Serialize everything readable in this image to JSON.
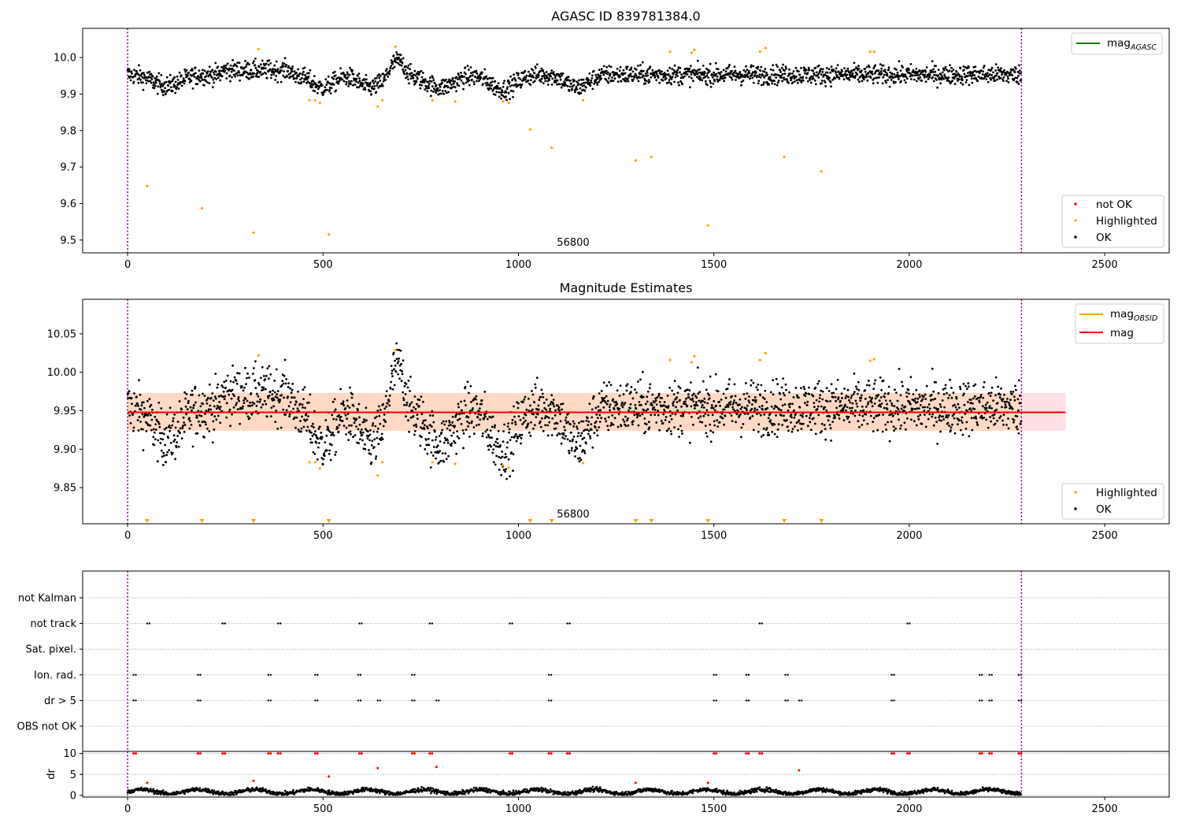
{
  "chart_data": [
    {
      "type": "scatter",
      "title": "AGASC ID 839781384.0",
      "xlabel": "",
      "ylabel": "",
      "xlim": [
        -115,
        2665
      ],
      "ylim": [
        9.465,
        10.08
      ],
      "xticks": [
        0,
        500,
        1000,
        1500,
        2000,
        2500
      ],
      "yticks": [
        9.5,
        9.6,
        9.7,
        9.8,
        9.9,
        10.0
      ],
      "ytick_labels": [
        "9.5",
        "9.6",
        "9.7",
        "9.8",
        "9.9",
        "10.0"
      ],
      "vlines": [
        0,
        2287
      ],
      "annotation": {
        "text": "56800",
        "x": 1140
      },
      "legend_line": {
        "label_main": "mag",
        "label_sub": "AGASC",
        "color": "#008000"
      },
      "legend_markers": [
        {
          "label": "not OK",
          "color": "#ff0000"
        },
        {
          "label": "Highlighted",
          "color": "#ffa500"
        },
        {
          "label": "OK",
          "color": "#000000"
        }
      ],
      "series": [
        {
          "name": "OK",
          "color": "#000000",
          "n_points": 2287,
          "trend": "noisy scatter around 9.95 with dips near 9.91"
        },
        {
          "name": "Highlighted",
          "color": "#ffa500",
          "x": [
            50,
            190,
            322,
            335,
            465,
            480,
            492,
            515,
            640,
            652,
            685,
            780,
            838,
            960,
            975,
            1030,
            1085,
            1165,
            1300,
            1340,
            1388,
            1443,
            1450,
            1485,
            1618,
            1632,
            1680,
            1775,
            1900,
            1910
          ],
          "y": [
            9.648,
            9.587,
            9.52,
            10.023,
            9.883,
            9.883,
            9.876,
            9.515,
            9.866,
            9.883,
            10.03,
            9.883,
            9.88,
            9.88,
            9.876,
            9.803,
            9.753,
            9.883,
            9.718,
            9.728,
            10.016,
            10.013,
            10.021,
            9.54,
            10.016,
            10.026,
            9.728,
            9.688,
            10.016,
            10.016
          ]
        }
      ]
    },
    {
      "type": "scatter",
      "title": "Magnitude Estimates",
      "xlim": [
        -115,
        2665
      ],
      "ylim": [
        9.803,
        10.095
      ],
      "xticks": [
        0,
        500,
        1000,
        1500,
        2000,
        2500
      ],
      "yticks": [
        9.85,
        9.9,
        9.95,
        10.0,
        10.05
      ],
      "ytick_labels": [
        "9.85",
        "9.90",
        "9.95",
        "10.00",
        "10.05"
      ],
      "vlines": [
        0,
        2287
      ],
      "annotation": {
        "text": "56800",
        "x": 1140
      },
      "mag_line": {
        "value": 9.948,
        "x_range": [
          0,
          2400
        ],
        "color": "#ff0000"
      },
      "band_outer": {
        "y": [
          9.924,
          9.973
        ],
        "x_range": [
          0,
          2400
        ],
        "color": "#ffe0e6"
      },
      "band_inner": {
        "y": [
          9.924,
          9.973
        ],
        "x_range": [
          0,
          2287
        ],
        "color": "#ffd9c6"
      },
      "legend_lines": [
        {
          "label_main": "mag",
          "label_sub": "OBSID",
          "color": "#ffa500"
        },
        {
          "label_main": "mag",
          "label_sub": "",
          "color": "#ff0000"
        }
      ],
      "legend_markers": [
        {
          "label": "Highlighted",
          "color": "#ffa500"
        },
        {
          "label": "OK",
          "color": "#000000"
        }
      ],
      "offscale_markers_x": [
        50,
        190,
        322,
        515,
        1030,
        1085,
        1300,
        1340,
        1485,
        1680,
        1775
      ],
      "series": [
        {
          "name": "OK",
          "color": "#000000",
          "n_points": 2287,
          "trend": "noisy scatter around 9.95 with dips to 9.89"
        },
        {
          "name": "Highlighted",
          "color": "#ffa500",
          "x": [
            335,
            465,
            480,
            492,
            640,
            652,
            685,
            780,
            838,
            960,
            975,
            1165,
            1388,
            1443,
            1450,
            1618,
            1632,
            1900,
            1910
          ],
          "y": [
            10.022,
            9.883,
            9.883,
            9.875,
            9.866,
            9.883,
            10.029,
            9.883,
            9.881,
            9.879,
            9.876,
            9.882,
            10.016,
            10.013,
            10.021,
            10.016,
            10.025,
            10.015,
            10.017
          ]
        }
      ]
    },
    {
      "type": "scatter",
      "title": "",
      "xlim": [
        -115,
        2665
      ],
      "categories": [
        "not Kalman",
        "not track",
        "Sat. pixel.",
        "Ion. rad.",
        "dr > 5",
        "OBS not OK"
      ],
      "vlines": [
        0,
        2287
      ],
      "flags": {
        "not Kalman": [],
        "not track": [
          50,
          243,
          385,
          593,
          773,
          978,
          1125,
          1617,
          1995
        ],
        "Sat. pixel.": [],
        "Ion. rad.": [
          15,
          180,
          360,
          480,
          590,
          728,
          1078,
          1500,
          1583,
          1683,
          1955,
          2180,
          2205,
          2280
        ],
        "dr > 5": [
          15,
          180,
          360,
          480,
          590,
          640,
          728,
          790,
          1078,
          1500,
          1583,
          1683,
          1718,
          1955,
          2180,
          2205,
          2280
        ],
        "OBS not OK": []
      }
    },
    {
      "type": "scatter",
      "title": "",
      "ylabel": "dr",
      "xlim": [
        -115,
        2665
      ],
      "ylim": [
        -0.4,
        10.5
      ],
      "yticks": [
        0,
        5,
        10
      ],
      "ytick_labels": [
        "0",
        "5",
        "10"
      ],
      "xticks": [
        0,
        500,
        1000,
        1500,
        2000,
        2500
      ],
      "vlines": [
        0,
        2287
      ],
      "series": [
        {
          "name": "OK",
          "color": "#000000",
          "n_points": 2287,
          "trend": "dr mostly 0.3 to 1.8"
        },
        {
          "name": "outlier",
          "color": "#ff0000",
          "x": [
            15,
            50,
            180,
            243,
            322,
            360,
            385,
            480,
            515,
            593,
            640,
            728,
            773,
            790,
            978,
            1078,
            1125,
            1300,
            1485,
            1500,
            1583,
            1617,
            1718,
            1955,
            1995,
            2180,
            2205,
            2280
          ],
          "y": [
            10,
            3,
            10,
            10,
            3.5,
            10,
            10,
            10,
            4.5,
            10,
            6.5,
            10,
            10,
            6.8,
            10,
            10,
            10,
            3,
            3,
            10,
            10,
            10,
            6,
            10,
            10,
            10,
            10,
            10
          ]
        }
      ]
    }
  ]
}
